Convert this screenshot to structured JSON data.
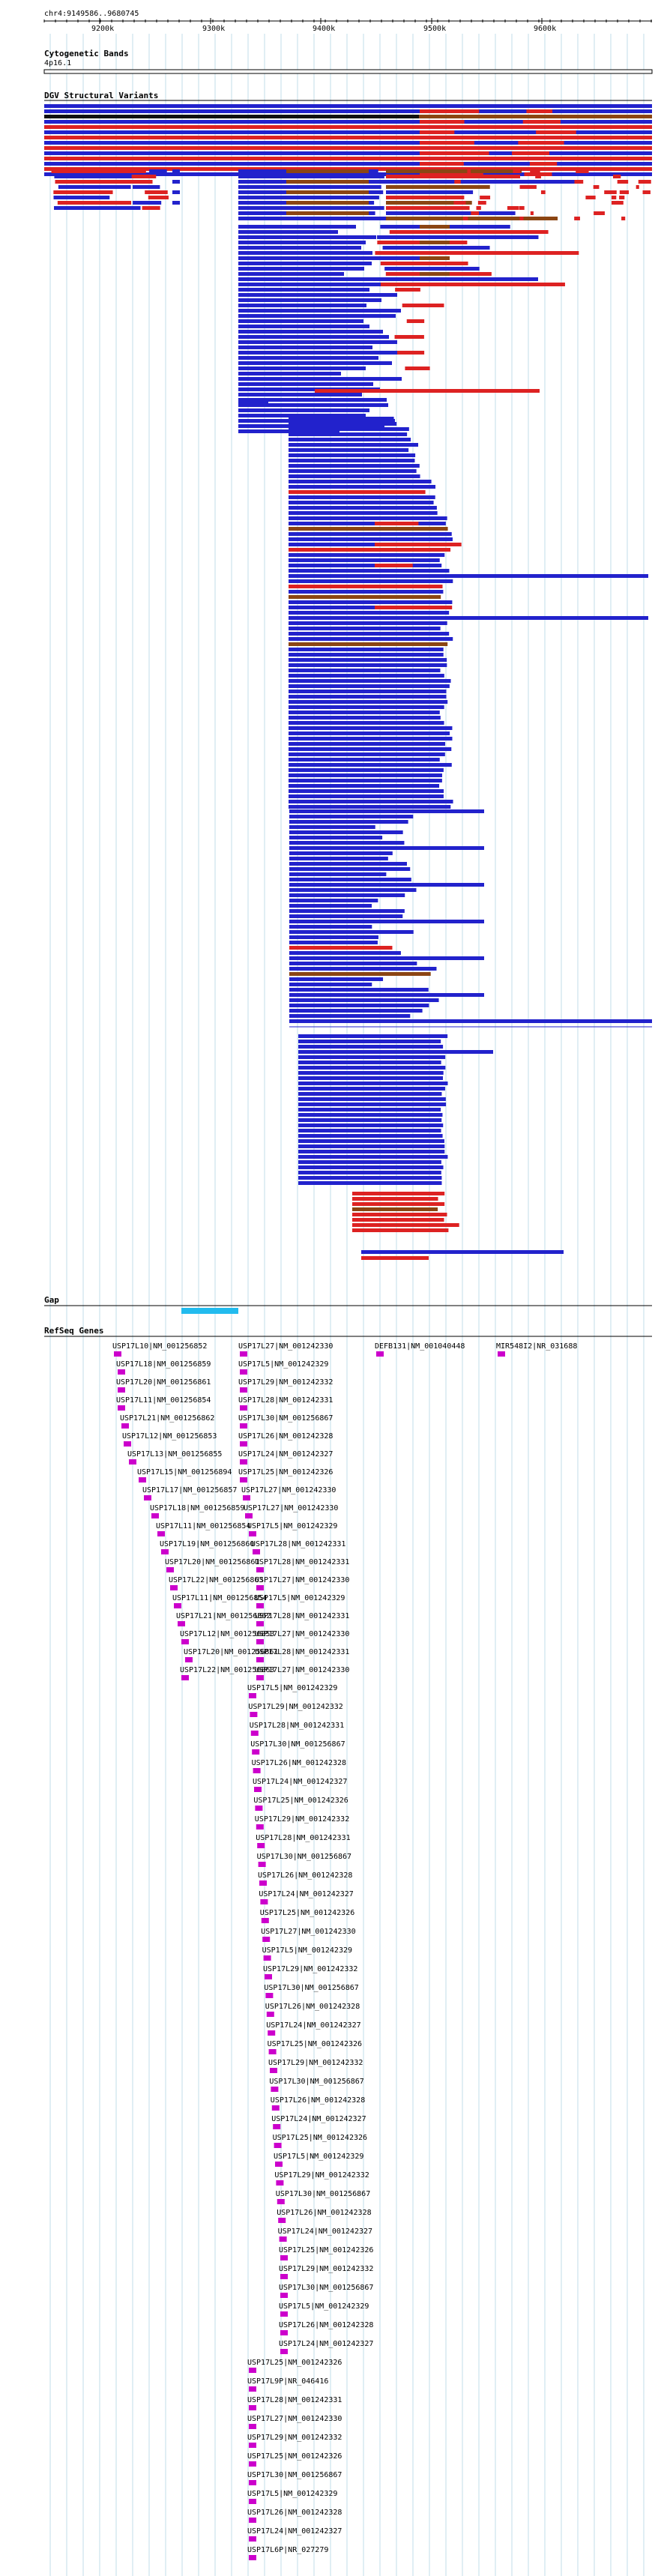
{
  "header": {
    "position": "chr4:9149586..9680745"
  },
  "ruler": {
    "ticks": [
      "9200k",
      "9300k",
      "9400k",
      "9500k",
      "9600k"
    ]
  },
  "tracks": {
    "cytobands": {
      "title": "Cytogenetic Bands",
      "band": "4p16.1"
    },
    "dgv": {
      "title": "DGV Structural Variants"
    },
    "gap": {
      "title": "Gap"
    },
    "refseq": {
      "title": "RefSeq Genes"
    }
  },
  "colors": {
    "gain": "#2222cc",
    "loss": "#dd2222",
    "both": "#8b4513",
    "other": "#111111",
    "gap": "#22bbee",
    "gene": "#cc00cc",
    "grid": "#c0dde8"
  },
  "genes": [
    "USP17L10|NM_001256852",
    "USP17L27|NM_001242330",
    "DEFB131|NM_001040448",
    "MIR548I2|NR_031688",
    "USP17L18|NM_001256859",
    "USP17L5|NM_001242329",
    "USP17L20|NM_001256861",
    "USP17L29|NM_001242332",
    "USP17L11|NM_001256854",
    "USP17L28|NM_001242331",
    "USP17L21|NM_001256862",
    "USP17L30|NM_001256867",
    "USP17L12|NM_001256853",
    "USP17L26|NM_001242328",
    "USP17L13|NM_001256855",
    "USP17L24|NM_001242327",
    "USP17L15|NM_001256894",
    "USP17L25|NM_001242326",
    "USP17L17|NM_001256857",
    "USP17L27|NM_001242330",
    "USP17L18|NM_001256859",
    "USP17L27|NM_001242330",
    "USP17L11|NM_001256854",
    "USP17L5|NM_001242329",
    "USP17L19|NM_001256860",
    "USP17L28|NM_001242331",
    "USP17L20|NM_001256861",
    "USP17L28|NM_001242331",
    "USP17L22|NM_001256863",
    "USP17L27|NM_001242330",
    "USP17L11|NM_001256854",
    "USP17L5|NM_001242329",
    "USP17L21|NM_001256862",
    "USP17L28|NM_001242331",
    "USP17L12|NM_001256853",
    "USP17L27|NM_001242330",
    "USP17L20|NM_001256861",
    "USP17L28|NM_001242331",
    "USP17L22|NM_001256863",
    "USP17L27|NM_001242330",
    "USP17L5|NM_001242329",
    "USP17L29|NM_001242332",
    "USP17L28|NM_001242331",
    "USP17L30|NM_001256867",
    "USP17L26|NM_001242328",
    "USP17L24|NM_001242327",
    "USP17L25|NM_001242326",
    "USP17L29|NM_001242332",
    "USP17L28|NM_001242331",
    "USP17L30|NM_001256867",
    "USP17L26|NM_001242328",
    "USP17L24|NM_001242327",
    "USP17L25|NM_001242326",
    "USP17L27|NM_001242330",
    "USP17L5|NM_001242329",
    "USP17L29|NM_001242332",
    "USP17L30|NM_001256867",
    "USP17L26|NM_001242328",
    "USP17L24|NM_001242327",
    "USP17L25|NM_001242326",
    "USP17L29|NM_001242332",
    "USP17L30|NM_001256867",
    "USP17L26|NM_001242328",
    "USP17L24|NM_001242327",
    "USP17L25|NM_001242326",
    "USP17L5|NM_001242329",
    "USP17L29|NM_001242332",
    "USP17L30|NM_001256867",
    "USP17L26|NM_001242328",
    "USP17L24|NM_001242327",
    "USP17L25|NM_001242326",
    "USP17L29|NM_001242332",
    "USP17L30|NM_001256867",
    "USP17L5|NM_001242329",
    "USP17L26|NM_001242328",
    "USP17L24|NM_001242327",
    "USP17L25|NM_001242326",
    "USP17L9P|NR_046416",
    "USP17L28|NM_001242331",
    "USP17L27|NM_001242330",
    "USP17L29|NM_001242332",
    "USP17L25|NM_001242326",
    "USP17L30|NM_001256867",
    "USP17L5|NM_001242329",
    "USP17L26|NM_001242328",
    "USP17L24|NM_001242327",
    "USP17L6P|NR_027279"
  ]
}
